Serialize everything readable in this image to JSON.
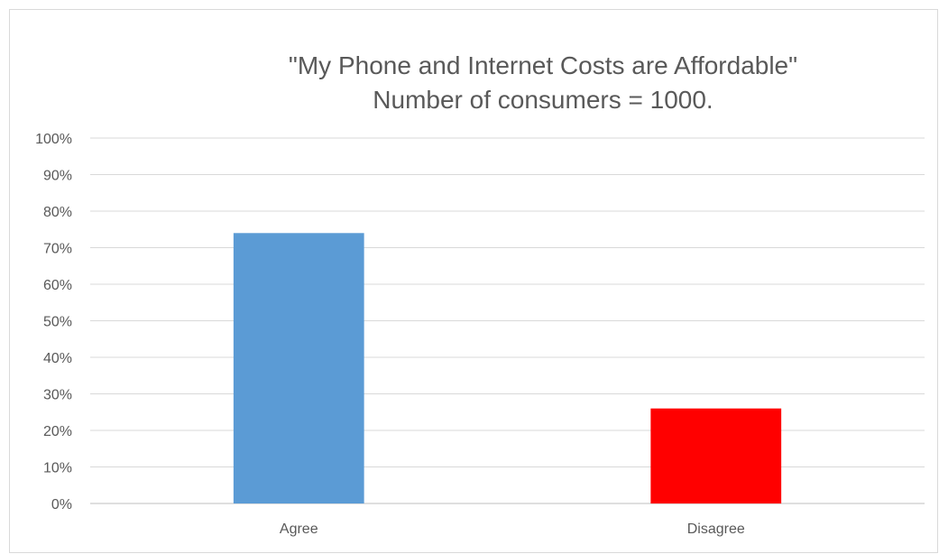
{
  "chart_data": {
    "type": "bar",
    "title": "\"My Phone and Internet Costs are Affordable\"",
    "subtitle": "Number of consumers = 1000.",
    "xlabel": "",
    "ylabel": "",
    "categories": [
      "Agree",
      "Disagree"
    ],
    "values": [
      74,
      26
    ],
    "value_unit": "%",
    "bar_colors": [
      "#5b9bd5",
      "#ff0000"
    ],
    "ylim": [
      0,
      100
    ],
    "yticks": [
      0,
      10,
      20,
      30,
      40,
      50,
      60,
      70,
      80,
      90,
      100
    ],
    "ytick_labels": [
      "0%",
      "10%",
      "20%",
      "30%",
      "40%",
      "50%",
      "60%",
      "70%",
      "80%",
      "90%",
      "100%"
    ],
    "grid": true,
    "legend": "none"
  }
}
